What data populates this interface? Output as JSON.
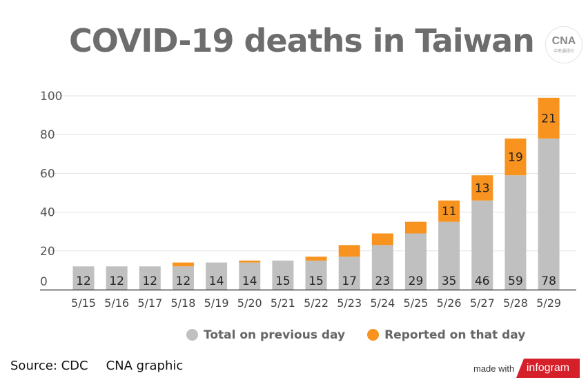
{
  "title": "COVID-19 deaths in Taiwan",
  "logo": {
    "text": "CNA",
    "subtext": "中央通訊社"
  },
  "source": "Source: CDC",
  "credit": "CNA graphic",
  "made_with": "made with",
  "brand": "infogram",
  "chart_data": {
    "type": "bar",
    "stacked": true,
    "title": "COVID-19 deaths in Taiwan",
    "categories": [
      "5/15",
      "5/16",
      "5/17",
      "5/18",
      "5/19",
      "5/20",
      "5/21",
      "5/22",
      "5/23",
      "5/24",
      "5/25",
      "5/26",
      "5/27",
      "5/28",
      "5/29"
    ],
    "series": [
      {
        "name": "Total on previous day",
        "color": "#c0c0c0",
        "values": [
          12,
          12,
          12,
          12,
          14,
          14,
          15,
          15,
          17,
          23,
          29,
          35,
          46,
          59,
          78
        ]
      },
      {
        "name": "Reported on that day",
        "color": "#f7931e",
        "values": [
          0,
          0,
          0,
          2,
          0,
          1,
          0,
          2,
          6,
          6,
          6,
          11,
          13,
          19,
          21
        ]
      }
    ],
    "yticks": [
      0,
      20,
      40,
      60,
      80,
      100
    ],
    "ylim": [
      0,
      100
    ],
    "grid": true,
    "legend": "bottom"
  }
}
